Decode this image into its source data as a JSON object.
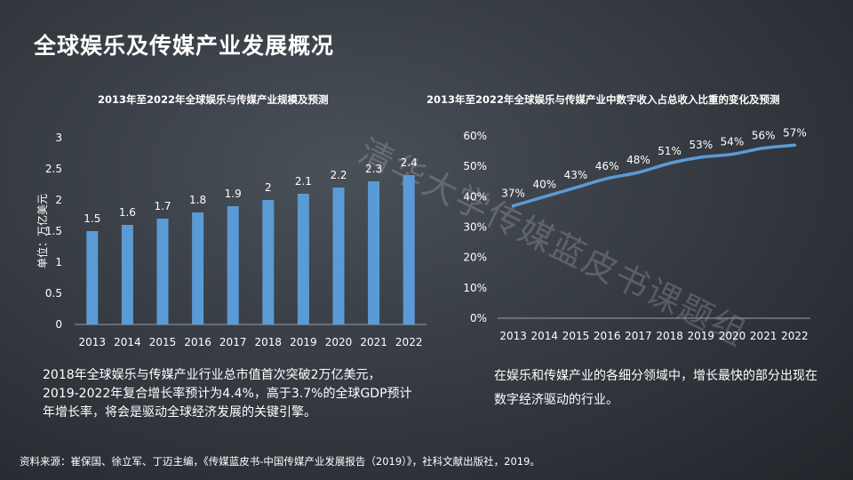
{
  "page": {
    "title": "全球娱乐及传媒产业发展概况",
    "watermark": "清华大学传媒蓝皮书课题组",
    "caption_left": "2018年全球娱乐与传媒产业行业总市值首次突破2万亿美元，2019-2022年复合增长率预计为4.4%，高于3.7%的全球GDP预计年增长率，将会是驱动全球经济发展的关键引擎。",
    "caption_right": "在娱乐和传媒产业的各细分领域中，增长最快的部分出现在数字经济驱动的行业。",
    "source": "资料来源：崔保国、徐立军、丁迈主编，《传媒蓝皮书-中国传媒产业发展报告（2019）》，社科文献出版社，2019。"
  },
  "chart_data": [
    {
      "type": "bar",
      "title": "2013年至2022年全球娱乐与传媒产业规模及预测",
      "ylabel": "单位：万亿美元",
      "categories": [
        "2013",
        "2014",
        "2015",
        "2016",
        "2017",
        "2018",
        "2019",
        "2020",
        "2021",
        "2022"
      ],
      "values": [
        1.5,
        1.6,
        1.7,
        1.8,
        1.9,
        2,
        2.1,
        2.2,
        2.3,
        2.4
      ],
      "ylim": [
        0,
        3
      ],
      "yticks": [
        "0",
        "0.5",
        "1",
        "1.5",
        "2",
        "2.5",
        "3"
      ],
      "color": "#5b9bd5",
      "grid": false
    },
    {
      "type": "line",
      "title": "2013年至2022年全球娱乐与传媒产业中数字收入占总收入比重的变化及预测",
      "categories": [
        "2013",
        "2014",
        "2015",
        "2016",
        "2017",
        "2018",
        "2019",
        "2020",
        "2021",
        "2022"
      ],
      "values": [
        37,
        40,
        43,
        46,
        48,
        51,
        53,
        54,
        56,
        57
      ],
      "labels": [
        "37%",
        "40%",
        "43%",
        "46%",
        "48%",
        "51%",
        "53%",
        "54%",
        "56%",
        "57%"
      ],
      "ylim": [
        0,
        60
      ],
      "yticks": [
        "0%",
        "10%",
        "20%",
        "30%",
        "40%",
        "50%",
        "60%"
      ],
      "color": "#5b9bd5",
      "grid": false
    }
  ]
}
